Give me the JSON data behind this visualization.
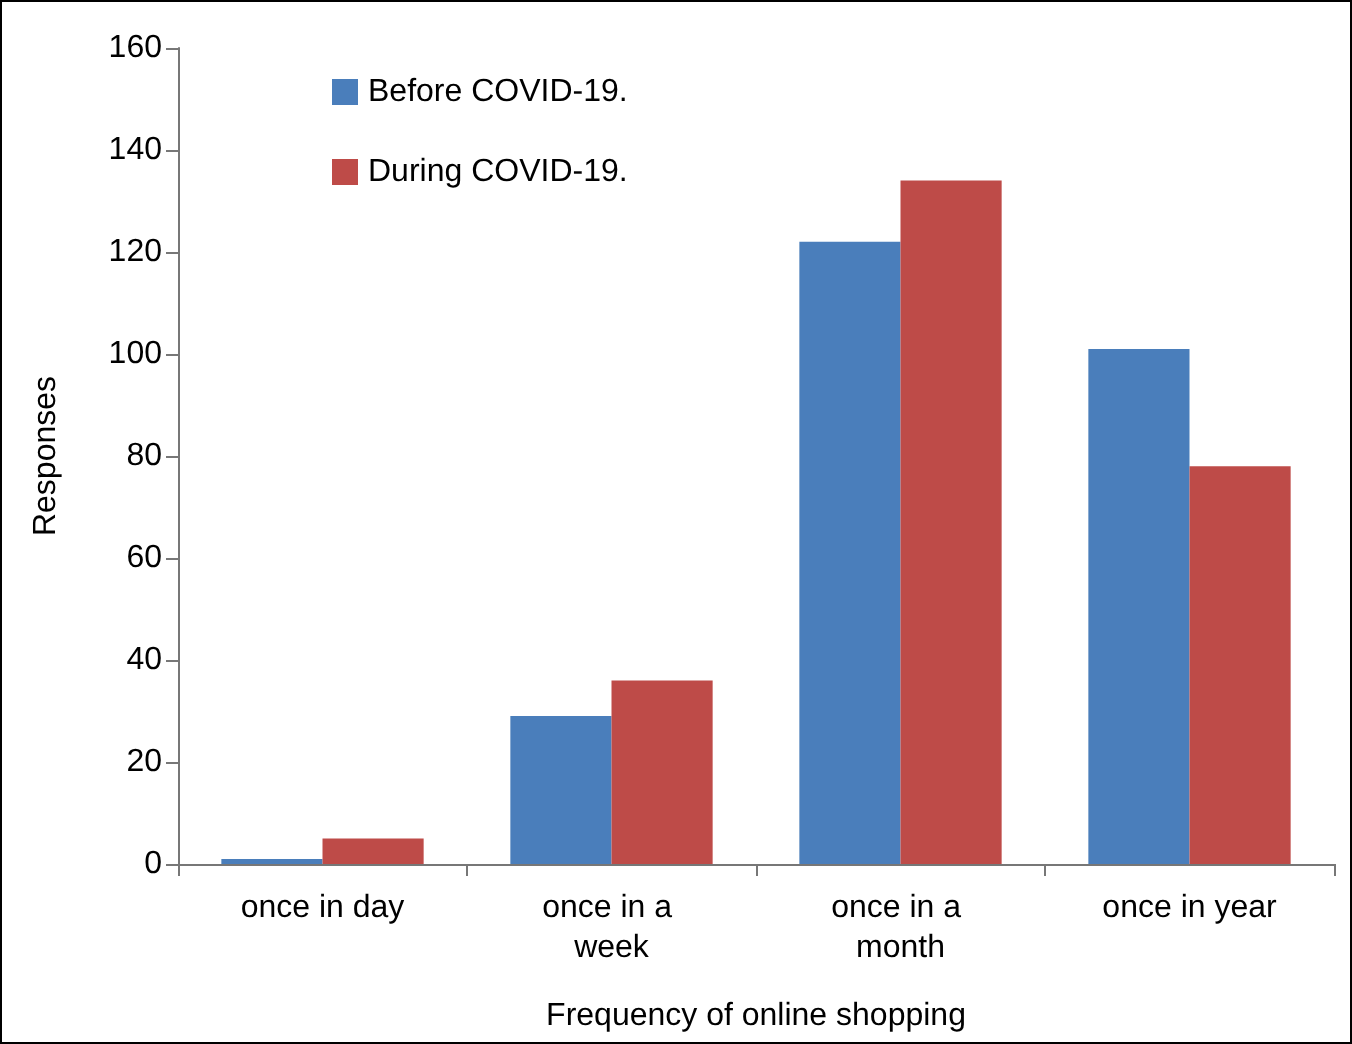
{
  "chart_data": {
    "type": "bar",
    "xlabel": "Frequency of online shopping",
    "ylabel": "Responses",
    "categories": [
      "once in day",
      "once in a week",
      "once in a month",
      "once in year"
    ],
    "series": [
      {
        "name": "Before COVID-19.",
        "color": "#4a7ebb",
        "values": [
          1,
          29,
          122,
          101
        ]
      },
      {
        "name": "During COVID-19.",
        "color": "#be4b48",
        "values": [
          5,
          36,
          134,
          78
        ]
      }
    ],
    "ylim": [
      0,
      160
    ],
    "yticks": [
      0,
      20,
      40,
      60,
      80,
      100,
      120,
      140,
      160
    ],
    "grid": false,
    "legend": "top left"
  }
}
